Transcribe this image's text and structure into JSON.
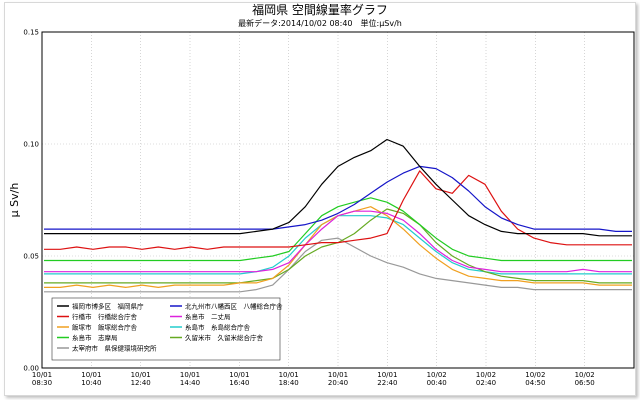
{
  "chart_data": {
    "type": "line",
    "title": "福岡県 空間線量率グラフ",
    "subtitle": "最新データ:2014/10/02 08:40　単位:μSv/h",
    "ylabel": "μ Sv/h",
    "xlabel": "",
    "ylim": [
      0,
      0.15
    ],
    "y_ticks": [
      "0.00",
      "0.05",
      "0.10",
      "0.15"
    ],
    "x_ticks": [
      {
        "date": "10/01",
        "time": "08:30"
      },
      {
        "date": "10/01",
        "time": "10:40"
      },
      {
        "date": "10/01",
        "time": "12:40"
      },
      {
        "date": "10/01",
        "time": "14:40"
      },
      {
        "date": "10/01",
        "time": "16:40"
      },
      {
        "date": "10/01",
        "time": "18:40"
      },
      {
        "date": "10/01",
        "time": "20:40"
      },
      {
        "date": "10/01",
        "time": "22:40"
      },
      {
        "date": "10/02",
        "time": "00:40"
      },
      {
        "date": "10/02",
        "time": "02:40"
      },
      {
        "date": "10/02",
        "time": "04:50"
      },
      {
        "date": "10/02",
        "time": "06:50"
      }
    ],
    "x": [
      "08:30",
      "09:30",
      "10:30",
      "11:30",
      "12:30",
      "13:30",
      "14:30",
      "15:30",
      "16:30",
      "17:30",
      "18:30",
      "19:30",
      "20:30",
      "21:00",
      "21:30",
      "22:00",
      "22:30",
      "23:00",
      "23:30",
      "00:00",
      "00:30",
      "01:00",
      "01:30",
      "02:00",
      "02:30",
      "03:00",
      "03:30",
      "04:00",
      "04:30",
      "05:00",
      "05:30",
      "06:00",
      "06:30",
      "07:00",
      "07:30",
      "08:00",
      "08:40"
    ],
    "grid": true,
    "legend_position": "bottom-left",
    "series": [
      {
        "name": "福岡市博多区　福岡県庁",
        "color": "#000000",
        "values": [
          0.06,
          0.06,
          0.06,
          0.06,
          0.06,
          0.06,
          0.06,
          0.06,
          0.06,
          0.06,
          0.06,
          0.06,
          0.06,
          0.061,
          0.062,
          0.065,
          0.072,
          0.082,
          0.09,
          0.094,
          0.097,
          0.102,
          0.099,
          0.09,
          0.082,
          0.075,
          0.068,
          0.064,
          0.061,
          0.06,
          0.06,
          0.06,
          0.06,
          0.06,
          0.059,
          0.059,
          0.059
        ]
      },
      {
        "name": "北九州市八幡西区　八幡総合庁舎",
        "color": "#1515c8",
        "values": [
          0.062,
          0.062,
          0.062,
          0.062,
          0.062,
          0.062,
          0.062,
          0.062,
          0.062,
          0.062,
          0.062,
          0.062,
          0.062,
          0.062,
          0.062,
          0.063,
          0.064,
          0.066,
          0.069,
          0.073,
          0.078,
          0.083,
          0.087,
          0.09,
          0.089,
          0.085,
          0.079,
          0.072,
          0.067,
          0.064,
          0.062,
          0.062,
          0.062,
          0.062,
          0.062,
          0.061,
          0.061
        ]
      },
      {
        "name": "行橋市　行橋総合庁舎",
        "color": "#dd1111",
        "values": [
          0.053,
          0.053,
          0.054,
          0.053,
          0.054,
          0.054,
          0.053,
          0.054,
          0.053,
          0.054,
          0.053,
          0.054,
          0.054,
          0.054,
          0.054,
          0.054,
          0.055,
          0.056,
          0.056,
          0.057,
          0.058,
          0.06,
          0.075,
          0.088,
          0.08,
          0.078,
          0.086,
          0.082,
          0.07,
          0.062,
          0.058,
          0.056,
          0.055,
          0.055,
          0.055,
          0.055,
          0.055
        ]
      },
      {
        "name": "糸島市　志摩局",
        "color": "#22cc22",
        "values": [
          0.048,
          0.048,
          0.048,
          0.048,
          0.048,
          0.048,
          0.048,
          0.048,
          0.048,
          0.048,
          0.048,
          0.048,
          0.048,
          0.049,
          0.05,
          0.052,
          0.06,
          0.068,
          0.072,
          0.074,
          0.076,
          0.074,
          0.07,
          0.064,
          0.058,
          0.053,
          0.05,
          0.049,
          0.048,
          0.048,
          0.048,
          0.048,
          0.048,
          0.048,
          0.048,
          0.048,
          0.048
        ]
      },
      {
        "name": "飯塚市　飯塚総合庁舎",
        "color": "#f0a020",
        "values": [
          0.036,
          0.036,
          0.037,
          0.036,
          0.037,
          0.036,
          0.037,
          0.036,
          0.037,
          0.037,
          0.037,
          0.037,
          0.038,
          0.038,
          0.04,
          0.046,
          0.055,
          0.064,
          0.068,
          0.07,
          0.072,
          0.068,
          0.062,
          0.055,
          0.049,
          0.044,
          0.041,
          0.04,
          0.039,
          0.039,
          0.038,
          0.038,
          0.038,
          0.038,
          0.037,
          0.037,
          0.037
        ]
      },
      {
        "name": "糸島市　二丈局",
        "color": "#dd22dd",
        "values": [
          0.043,
          0.043,
          0.043,
          0.043,
          0.043,
          0.043,
          0.043,
          0.043,
          0.043,
          0.043,
          0.043,
          0.043,
          0.043,
          0.043,
          0.044,
          0.047,
          0.055,
          0.062,
          0.068,
          0.07,
          0.07,
          0.069,
          0.066,
          0.06,
          0.053,
          0.048,
          0.045,
          0.044,
          0.043,
          0.043,
          0.043,
          0.043,
          0.043,
          0.044,
          0.043,
          0.043,
          0.043
        ]
      },
      {
        "name": "糸島市　糸島総合庁舎",
        "color": "#22cccc",
        "values": [
          0.042,
          0.042,
          0.042,
          0.042,
          0.042,
          0.042,
          0.042,
          0.042,
          0.042,
          0.042,
          0.042,
          0.042,
          0.042,
          0.043,
          0.045,
          0.05,
          0.058,
          0.064,
          0.068,
          0.068,
          0.068,
          0.067,
          0.064,
          0.058,
          0.052,
          0.047,
          0.044,
          0.043,
          0.042,
          0.042,
          0.042,
          0.042,
          0.042,
          0.042,
          0.042,
          0.042,
          0.042
        ]
      },
      {
        "name": "久留米市　久留米総合庁舎",
        "color": "#66aa22",
        "values": [
          0.038,
          0.038,
          0.038,
          0.038,
          0.038,
          0.038,
          0.038,
          0.038,
          0.038,
          0.038,
          0.038,
          0.038,
          0.038,
          0.039,
          0.04,
          0.044,
          0.05,
          0.054,
          0.056,
          0.06,
          0.066,
          0.071,
          0.069,
          0.064,
          0.056,
          0.05,
          0.046,
          0.043,
          0.041,
          0.04,
          0.039,
          0.039,
          0.039,
          0.039,
          0.038,
          0.038,
          0.038
        ]
      },
      {
        "name": "太宰府市　県保健環境研究所",
        "color": "#999999",
        "values": [
          0.034,
          0.034,
          0.034,
          0.034,
          0.034,
          0.034,
          0.034,
          0.034,
          0.034,
          0.034,
          0.034,
          0.034,
          0.034,
          0.035,
          0.037,
          0.044,
          0.052,
          0.057,
          0.058,
          0.054,
          0.05,
          0.047,
          0.045,
          0.042,
          0.04,
          0.039,
          0.038,
          0.037,
          0.036,
          0.036,
          0.035,
          0.035,
          0.035,
          0.035,
          0.035,
          0.035,
          0.035
        ]
      }
    ]
  }
}
